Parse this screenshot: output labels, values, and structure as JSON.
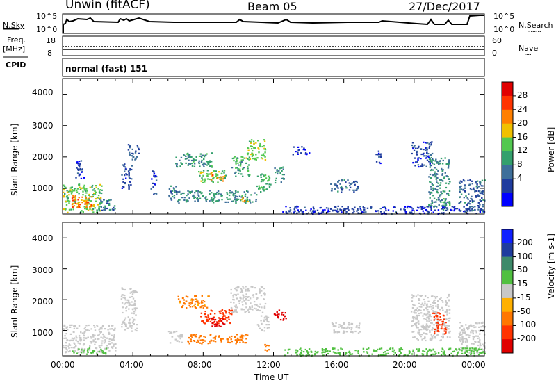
{
  "header": {
    "station": "Unwin (fitACF)",
    "beam": "Beam 05",
    "date": "27/Dec/2017"
  },
  "top_panel": {
    "left_label": "N.Sky",
    "left_ticks": [
      "10^5",
      "10^0"
    ],
    "right_ticks": [
      "10^5",
      "10^0"
    ],
    "right_label": "N.Search",
    "right_dots": "........"
  },
  "freq_panel": {
    "label_top": "Freq.",
    "label_unit": "[MHz]",
    "left_ticks": [
      "18",
      "8"
    ],
    "right_ticks": [
      "60",
      "0"
    ],
    "right_label": "Nave",
    "right_dots": "...."
  },
  "cpid": {
    "label": "CPID",
    "text": "normal (fast) 151"
  },
  "chart_data": [
    {
      "type": "heatmap",
      "title": "",
      "xlabel": "",
      "ylabel": "Slant Range [km]",
      "x_range": [
        "00:00",
        "00:00"
      ],
      "ylim": [
        180,
        4500
      ],
      "y_ticks": [
        "4000",
        "3000",
        "2000",
        "1000"
      ],
      "colorbar": {
        "label": "Power [dB]",
        "ticks": [
          "28",
          "24",
          "20",
          "16",
          "12",
          "8",
          "4"
        ],
        "colors": [
          "#0000ff",
          "#1f3c9e",
          "#3e6f9a",
          "#34a06d",
          "#52c850",
          "#f0c000",
          "#ff7f00",
          "#ff3300",
          "#e00000"
        ]
      },
      "regions": [
        {
          "t": [
            0.0,
            2.2
          ],
          "r": [
            250,
            1150
          ],
          "v": 18
        },
        {
          "t": [
            0.5,
            1.7
          ],
          "r": [
            400,
            800
          ],
          "v": 27
        },
        {
          "t": [
            0.7,
            1.2
          ],
          "r": [
            1200,
            1900
          ],
          "v": 6
        },
        {
          "t": [
            2.0,
            3.0
          ],
          "r": [
            300,
            700
          ],
          "v": 10
        },
        {
          "t": [
            3.3,
            3.9
          ],
          "r": [
            1000,
            1800
          ],
          "v": 7
        },
        {
          "t": [
            3.7,
            4.3
          ],
          "r": [
            1900,
            2450
          ],
          "v": 8
        },
        {
          "t": [
            5.0,
            5.3
          ],
          "r": [
            800,
            1600
          ],
          "v": 6
        },
        {
          "t": [
            6.0,
            6.6
          ],
          "r": [
            600,
            1100
          ],
          "v": 10
        },
        {
          "t": [
            6.4,
            8.5
          ],
          "r": [
            1700,
            2150
          ],
          "v": 13
        },
        {
          "t": [
            7.7,
            9.3
          ],
          "r": [
            1200,
            1600
          ],
          "v": 17
        },
        {
          "t": [
            8.4,
            9.1
          ],
          "r": [
            1250,
            1500
          ],
          "v": 25
        },
        {
          "t": [
            6.5,
            11.0
          ],
          "r": [
            550,
            950
          ],
          "v": 12
        },
        {
          "t": [
            9.6,
            10.6
          ],
          "r": [
            1400,
            2050
          ],
          "v": 15
        },
        {
          "t": [
            10.4,
            11.5
          ],
          "r": [
            1900,
            2600
          ],
          "v": 19
        },
        {
          "t": [
            10.1,
            10.5
          ],
          "r": [
            600,
            850
          ],
          "v": 22
        },
        {
          "t": [
            11.0,
            11.8
          ],
          "r": [
            900,
            1500
          ],
          "v": 16
        },
        {
          "t": [
            12.0,
            12.6
          ],
          "r": [
            1200,
            1700
          ],
          "v": 12
        },
        {
          "t": [
            15.2,
            16.8
          ],
          "r": [
            900,
            1300
          ],
          "v": 9
        },
        {
          "t": [
            13.0,
            14.0
          ],
          "r": [
            2100,
            2350
          ],
          "v": 5
        },
        {
          "t": [
            17.8,
            18.1
          ],
          "r": [
            1800,
            2300
          ],
          "v": 6
        },
        {
          "t": [
            19.8,
            21.0
          ],
          "r": [
            1700,
            2500
          ],
          "v": 7
        },
        {
          "t": [
            20.8,
            22.0
          ],
          "r": [
            400,
            2000
          ],
          "v": 12
        },
        {
          "t": [
            21.6,
            22.0
          ],
          "r": [
            300,
            700
          ],
          "v": 16
        },
        {
          "t": [
            22.5,
            24.0
          ],
          "r": [
            250,
            1300
          ],
          "v": 9
        },
        {
          "t": [
            12.5,
            24.0
          ],
          "r": [
            200,
            450
          ],
          "v": 5
        }
      ]
    },
    {
      "type": "heatmap",
      "title": "",
      "xlabel": "Time UT",
      "ylabel": "Slant Range [km]",
      "x_ticks": [
        "00:00",
        "04:00",
        "08:00",
        "12:00",
        "16:00",
        "20:00",
        "00:00"
      ],
      "ylim": [
        180,
        4500
      ],
      "y_ticks": [
        "4000",
        "3000",
        "2000",
        "1000"
      ],
      "colorbar": {
        "label": "Velocity [m s-1]",
        "ticks": [
          "200",
          "100",
          "50",
          "15",
          "-15",
          "-50",
          "-100",
          "-200"
        ],
        "colors": [
          "#1020ff",
          "#1f3c9e",
          "#3e8a6a",
          "#50c040",
          "#c8c8c8",
          "#ffb000",
          "#ff7700",
          "#ff3300",
          "#e00000"
        ]
      },
      "regions": [
        {
          "t": [
            0.0,
            3.0
          ],
          "r": [
            300,
            1200
          ],
          "v": 0
        },
        {
          "t": [
            0.5,
            2.5
          ],
          "r": [
            250,
            450
          ],
          "v": 30
        },
        {
          "t": [
            3.3,
            4.2
          ],
          "r": [
            1000,
            2400
          ],
          "v": 0
        },
        {
          "t": [
            6.0,
            6.8
          ],
          "r": [
            600,
            1000
          ],
          "v": 0
        },
        {
          "t": [
            6.5,
            8.3
          ],
          "r": [
            1750,
            2150
          ],
          "v": -55
        },
        {
          "t": [
            7.8,
            9.6
          ],
          "r": [
            1250,
            1700
          ],
          "v": -140
        },
        {
          "t": [
            8.3,
            9.2
          ],
          "r": [
            1150,
            1450
          ],
          "v": -220
        },
        {
          "t": [
            7.0,
            10.5
          ],
          "r": [
            600,
            900
          ],
          "v": -60
        },
        {
          "t": [
            9.5,
            11.5
          ],
          "r": [
            1600,
            2450
          ],
          "v": 0
        },
        {
          "t": [
            10.1,
            10.6
          ],
          "r": [
            700,
            900
          ],
          "v": -90
        },
        {
          "t": [
            11.0,
            11.7
          ],
          "r": [
            1000,
            1500
          ],
          "v": 0
        },
        {
          "t": [
            11.3,
            11.7
          ],
          "r": [
            350,
            600
          ],
          "v": -90
        },
        {
          "t": [
            12.0,
            12.7
          ],
          "r": [
            1350,
            1700
          ],
          "v": -230
        },
        {
          "t": [
            15.2,
            16.9
          ],
          "r": [
            900,
            1300
          ],
          "v": 0
        },
        {
          "t": [
            19.8,
            22.0
          ],
          "r": [
            700,
            2200
          ],
          "v": 0
        },
        {
          "t": [
            21.0,
            21.8
          ],
          "r": [
            900,
            1600
          ],
          "v": -160
        },
        {
          "t": [
            22.5,
            24.0
          ],
          "r": [
            300,
            1300
          ],
          "v": 0
        },
        {
          "t": [
            12.5,
            24.0
          ],
          "r": [
            200,
            450
          ],
          "v": 30
        }
      ]
    }
  ]
}
